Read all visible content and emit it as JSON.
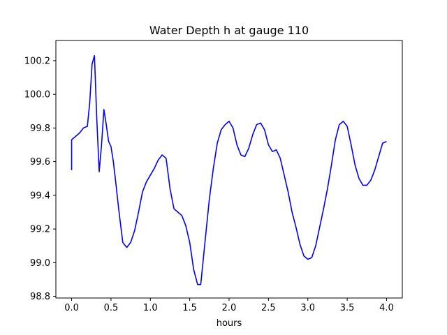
{
  "chart_data": {
    "type": "line",
    "title": "Water Depth h at gauge 110",
    "xlabel": "hours",
    "ylabel": "",
    "xlim": [
      -0.2,
      4.2
    ],
    "ylim": [
      98.79,
      100.32
    ],
    "xticks": [
      0.0,
      0.5,
      1.0,
      1.5,
      2.0,
      2.5,
      3.0,
      3.5,
      4.0
    ],
    "xtick_labels": [
      "0.0",
      "0.5",
      "1.0",
      "1.5",
      "2.0",
      "2.5",
      "3.0",
      "3.5",
      "4.0"
    ],
    "yticks": [
      98.8,
      99.0,
      99.2,
      99.4,
      99.6,
      99.8,
      100.0,
      100.2
    ],
    "ytick_labels": [
      "98.8",
      "99.0",
      "99.2",
      "99.4",
      "99.6",
      "99.8",
      "100.0",
      "100.2"
    ],
    "grid": false,
    "series": [
      {
        "color": "#0000ff",
        "x": [
          0.0,
          0.0,
          0.05,
          0.1,
          0.15,
          0.2,
          0.23,
          0.26,
          0.29,
          0.32,
          0.35,
          0.38,
          0.41,
          0.44,
          0.47,
          0.5,
          0.53,
          0.56,
          0.6,
          0.65,
          0.7,
          0.75,
          0.8,
          0.85,
          0.9,
          0.95,
          1.0,
          1.05,
          1.1,
          1.15,
          1.2,
          1.25,
          1.3,
          1.35,
          1.4,
          1.45,
          1.5,
          1.55,
          1.6,
          1.64,
          1.7,
          1.75,
          1.8,
          1.85,
          1.9,
          1.95,
          2.0,
          2.05,
          2.1,
          2.15,
          2.2,
          2.25,
          2.3,
          2.35,
          2.4,
          2.45,
          2.5,
          2.55,
          2.6,
          2.65,
          2.7,
          2.75,
          2.8,
          2.85,
          2.9,
          2.95,
          3.0,
          3.05,
          3.1,
          3.15,
          3.2,
          3.25,
          3.3,
          3.35,
          3.4,
          3.45,
          3.5,
          3.55,
          3.6,
          3.65,
          3.7,
          3.75,
          3.8,
          3.85,
          3.9,
          3.95,
          4.0
        ],
        "y": [
          99.55,
          99.73,
          99.75,
          99.77,
          99.8,
          99.81,
          99.95,
          100.18,
          100.23,
          99.85,
          99.54,
          99.7,
          99.91,
          99.82,
          99.72,
          99.69,
          99.6,
          99.48,
          99.31,
          99.12,
          99.09,
          99.12,
          99.19,
          99.3,
          99.42,
          99.48,
          99.52,
          99.56,
          99.61,
          99.64,
          99.62,
          99.44,
          99.32,
          99.3,
          99.28,
          99.22,
          99.12,
          98.96,
          98.87,
          98.87,
          99.15,
          99.38,
          99.56,
          99.71,
          99.79,
          99.82,
          99.84,
          99.8,
          99.7,
          99.64,
          99.63,
          99.68,
          99.76,
          99.82,
          99.83,
          99.79,
          99.7,
          99.66,
          99.67,
          99.62,
          99.52,
          99.42,
          99.3,
          99.21,
          99.11,
          99.04,
          99.02,
          99.03,
          99.1,
          99.21,
          99.32,
          99.44,
          99.58,
          99.73,
          99.82,
          99.84,
          99.81,
          99.7,
          99.58,
          99.5,
          99.46,
          99.46,
          99.49,
          99.55,
          99.63,
          99.71,
          99.72
        ]
      }
    ]
  }
}
